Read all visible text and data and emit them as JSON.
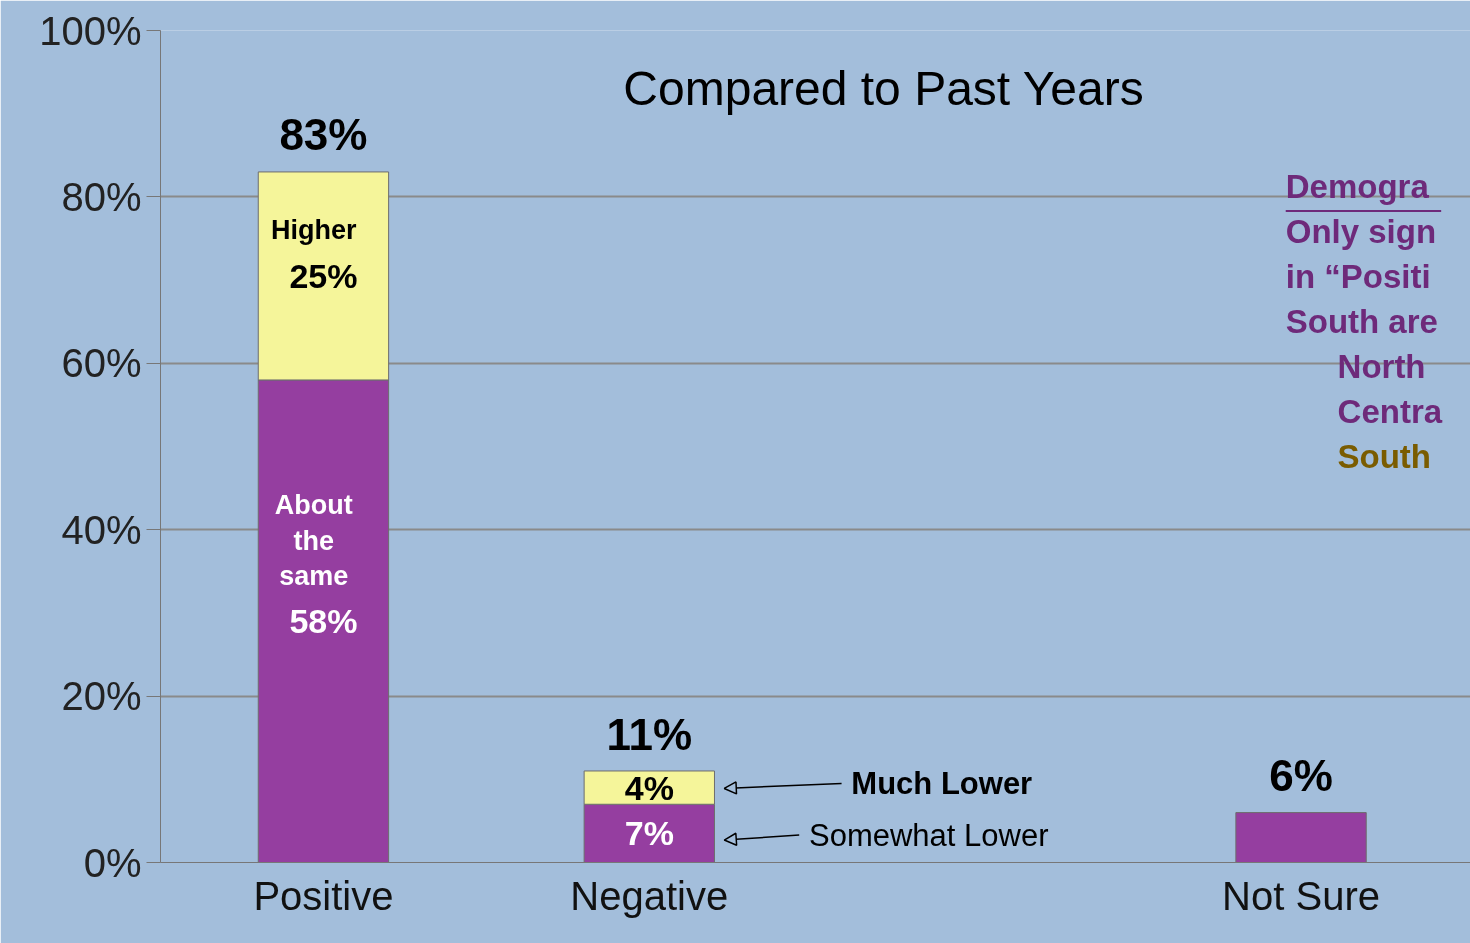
{
  "chart_data": {
    "type": "bar",
    "title": "Compared to Past Years",
    "categories": [
      "Positive",
      "Negative",
      null,
      "Not Sure"
    ],
    "stacked": true,
    "series": [
      {
        "color": "#953ea0",
        "values": [
          58,
          7,
          null,
          6
        ],
        "value_labels": [
          "58%",
          "7%",
          null,
          null
        ]
      },
      {
        "color": "#f5f59a",
        "values": [
          25,
          4,
          null,
          null
        ],
        "value_labels": [
          "25%",
          "4%",
          null,
          null
        ]
      }
    ],
    "totals": [
      "83%",
      "11%",
      null,
      "6%"
    ],
    "ylim": [
      0,
      100
    ],
    "yticks": [
      {
        "value": 0,
        "label": "0%"
      },
      {
        "value": 20,
        "label": "20%"
      },
      {
        "value": 40,
        "label": "40%"
      },
      {
        "value": 60,
        "label": "60%"
      },
      {
        "value": 80,
        "label": "80%"
      },
      {
        "value": 100,
        "label": "100%"
      }
    ],
    "grid": "y",
    "annotations": [
      "Higher",
      "About the same",
      "Much Lower",
      "Somewhat Lower",
      "Demogra",
      "Only sign",
      "in “Positi",
      "South are",
      "North",
      "Centra",
      "South"
    ]
  }
}
